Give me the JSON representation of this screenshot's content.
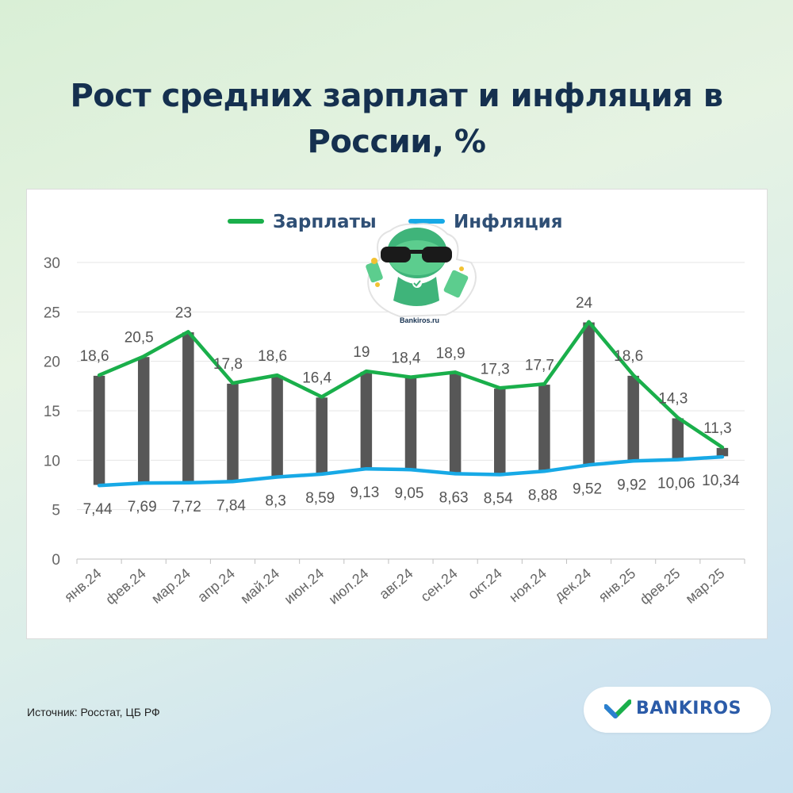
{
  "title": {
    "line1": "Рост средних зарплат и инфляция в",
    "line2": "России, %"
  },
  "source": "Источник: Росстат, ЦБ РФ",
  "brand": {
    "name": "BANKIROS",
    "sticker_text": "Bankiros.ru"
  },
  "colors": {
    "salary": "#1aaf4b",
    "inflation": "#17a9e6",
    "bar": "#575757",
    "title": "#15304f",
    "brand": "#2b5ba8"
  },
  "chart_data": {
    "type": "line",
    "categories": [
      "янв.24",
      "фев.24",
      "мар.24",
      "апр.24",
      "май.24",
      "июн.24",
      "июл.24",
      "авг.24",
      "сен.24",
      "окт.24",
      "ноя.24",
      "дек.24",
      "янв.25",
      "фев.25",
      "мар.25"
    ],
    "series": [
      {
        "name": "Зарплаты",
        "values": [
          18.6,
          20.5,
          23,
          17.8,
          18.6,
          16.4,
          19,
          18.4,
          18.9,
          17.3,
          17.7,
          24,
          18.6,
          14.3,
          11.3
        ],
        "labels": [
          "18,6",
          "20,5",
          "23",
          "17,8",
          "18,6",
          "16,4",
          "19",
          "18,4",
          "18,9",
          "17,3",
          "17,7",
          "24",
          "18,6",
          "14,3",
          "11,3"
        ]
      },
      {
        "name": "Инфляция",
        "values": [
          7.44,
          7.69,
          7.72,
          7.84,
          8.3,
          8.59,
          9.13,
          9.05,
          8.63,
          8.54,
          8.88,
          9.52,
          9.92,
          10.06,
          10.34
        ],
        "labels": [
          "7,44",
          "7,69",
          "7,72",
          "7,84",
          "8,3",
          "8,59",
          "9,13",
          "9,05",
          "8,63",
          "8,54",
          "8,88",
          "9,52",
          "9,92",
          "10,06",
          "10,34"
        ]
      }
    ],
    "ylim": [
      0,
      30
    ],
    "yticks": [
      "0",
      "5",
      "10",
      "15",
      "20",
      "25",
      "30"
    ],
    "grid": true,
    "legend_position": "top-center"
  }
}
